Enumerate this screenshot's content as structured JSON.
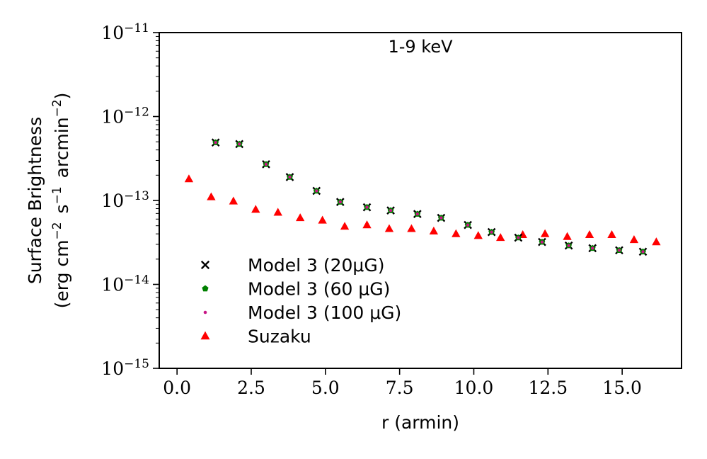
{
  "chart_data": {
    "type": "scatter",
    "title": "",
    "annotation": "1-9 keV",
    "xlabel": "r (armin)",
    "ylabel_line1": "Surface Brightness",
    "ylabel_line2": "(erg cm",
    "ylabel_parts": {
      "erg": "(erg cm",
      "exp_cm": "−2",
      "s": "s",
      "exp_s": "−1",
      "arcmin": "arcmin",
      "exp_arcmin": "−2",
      "close": ")"
    },
    "xscale": "linear",
    "yscale": "log",
    "xlim": [
      -0.6,
      17.0
    ],
    "ylim": [
      1e-15,
      1e-11
    ],
    "xticks": [
      {
        "value": 0.0,
        "label": "0.0"
      },
      {
        "value": 2.5,
        "label": "2.5"
      },
      {
        "value": 5.0,
        "label": "5.0"
      },
      {
        "value": 7.5,
        "label": "7.5"
      },
      {
        "value": 10.0,
        "label": "10.0"
      },
      {
        "value": 12.5,
        "label": "12.5"
      },
      {
        "value": 15.0,
        "label": "15.0"
      }
    ],
    "yticks": [
      {
        "exp": -11,
        "base": "10",
        "power": "−11"
      },
      {
        "exp": -12,
        "base": "10",
        "power": "−12"
      },
      {
        "exp": -13,
        "base": "10",
        "power": "−13"
      },
      {
        "exp": -14,
        "base": "10",
        "power": "−14"
      },
      {
        "exp": -15,
        "base": "10",
        "power": "−15"
      }
    ],
    "legend_position": "lower-left",
    "series": [
      {
        "name": "Model 3 (20μG)",
        "marker": "x",
        "color": "#000000",
        "x": [
          1.3,
          2.1,
          3.0,
          3.8,
          4.7,
          5.5,
          6.4,
          7.2,
          8.1,
          8.9,
          9.8,
          10.6,
          11.5,
          12.3,
          13.2,
          14.0,
          14.9,
          15.7
        ],
        "y": [
          4.9e-13,
          4.7e-13,
          2.7e-13,
          1.9e-13,
          1.3e-13,
          9.6e-14,
          8.3e-14,
          7.6e-14,
          6.9e-14,
          6.2e-14,
          5.1e-14,
          4.2e-14,
          3.6e-14,
          3.2e-14,
          2.9e-14,
          2.7e-14,
          2.55e-14,
          2.45e-14
        ]
      },
      {
        "name": "Model 3 (60 μG)",
        "marker": "pentagon",
        "color": "#008000",
        "x": [
          1.3,
          2.1,
          3.0,
          3.8,
          4.7,
          5.5,
          6.4,
          7.2,
          8.1,
          8.9,
          9.8,
          10.6,
          11.5,
          12.3,
          13.2,
          14.0,
          14.9,
          15.7
        ],
        "y": [
          4.9e-13,
          4.7e-13,
          2.7e-13,
          1.9e-13,
          1.3e-13,
          9.6e-14,
          8.3e-14,
          7.6e-14,
          6.9e-14,
          6.2e-14,
          5.1e-14,
          4.2e-14,
          3.6e-14,
          3.2e-14,
          2.9e-14,
          2.7e-14,
          2.55e-14,
          2.45e-14
        ]
      },
      {
        "name": "Model 3 (100 μG)",
        "marker": "dot",
        "color": "#c71585",
        "x": [
          1.3,
          2.1,
          3.0,
          3.8,
          4.7,
          5.5,
          6.4,
          7.2,
          8.1,
          8.9,
          9.8,
          10.6,
          11.5,
          12.3,
          13.2,
          14.0,
          14.9,
          15.7
        ],
        "y": [
          4.9e-13,
          4.7e-13,
          2.7e-13,
          1.9e-13,
          1.3e-13,
          9.6e-14,
          8.3e-14,
          7.6e-14,
          6.9e-14,
          6.2e-14,
          5.1e-14,
          4.2e-14,
          3.6e-14,
          3.2e-14,
          2.9e-14,
          2.7e-14,
          2.55e-14,
          2.45e-14
        ]
      },
      {
        "name": "Suzaku",
        "marker": "triangle",
        "color": "#ff0000",
        "x": [
          0.4,
          1.15,
          1.9,
          2.65,
          3.4,
          4.15,
          4.9,
          5.65,
          6.4,
          7.15,
          7.9,
          8.65,
          9.4,
          10.15,
          10.9,
          11.65,
          12.4,
          13.15,
          13.9,
          14.65,
          15.4,
          16.15
        ],
        "y": [
          1.8e-13,
          1.1e-13,
          9.8e-14,
          7.8e-14,
          7.2e-14,
          6.2e-14,
          5.8e-14,
          4.9e-14,
          5.1e-14,
          4.6e-14,
          4.6e-14,
          4.3e-14,
          4e-14,
          3.8e-14,
          3.6e-14,
          3.9e-14,
          4e-14,
          3.7e-14,
          3.9e-14,
          3.9e-14,
          3.4e-14,
          3.2e-14
        ]
      }
    ]
  }
}
